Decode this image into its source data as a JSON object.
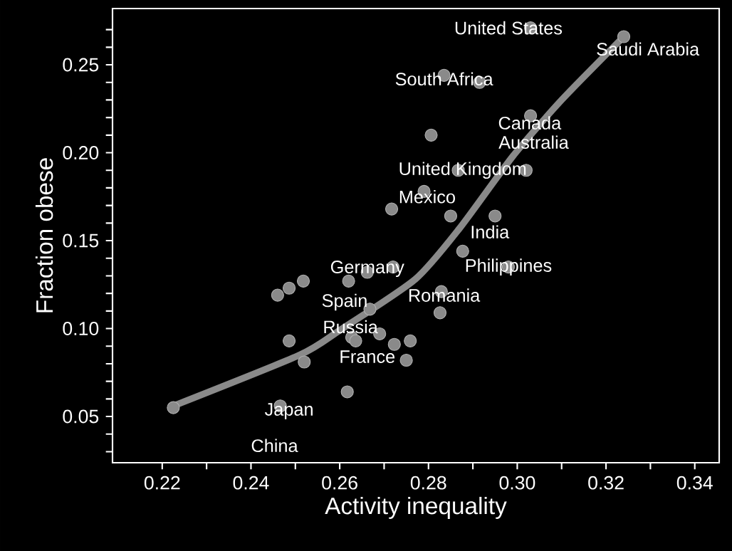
{
  "chart_data": {
    "type": "scatter",
    "xlabel": "Activity inequality",
    "ylabel": "Fraction obese",
    "xlim": [
      0.2088,
      0.3455
    ],
    "ylim": [
      0.0237,
      0.282
    ],
    "xticks": [
      0.22,
      {
        "value": 0.23,
        "label": null
      },
      0.24,
      {
        "value": 0.25,
        "label": null
      },
      0.26,
      {
        "value": 0.27,
        "label": null
      },
      0.28,
      {
        "value": 0.29,
        "label": null
      },
      {
        "value": 0.3,
        "label": "0.30"
      },
      {
        "value": 0.31,
        "label": null
      },
      0.32,
      {
        "value": 0.33,
        "label": null
      },
      0.34
    ],
    "yticks": [
      {
        "value": 0.03,
        "label": null
      },
      {
        "value": 0.04,
        "label": null
      },
      0.05,
      {
        "value": 0.06,
        "label": null
      },
      {
        "value": 0.07,
        "label": null
      },
      {
        "value": 0.08,
        "label": null
      },
      {
        "value": 0.09,
        "label": null
      },
      {
        "value": 0.1,
        "label": "0.10"
      },
      {
        "value": 0.11,
        "label": null
      },
      {
        "value": 0.12,
        "label": null
      },
      {
        "value": 0.13,
        "label": null
      },
      {
        "value": 0.14,
        "label": null
      },
      0.15,
      {
        "value": 0.16,
        "label": null
      },
      {
        "value": 0.17,
        "label": null
      },
      {
        "value": 0.18,
        "label": null
      },
      {
        "value": 0.19,
        "label": null
      },
      {
        "value": 0.2,
        "label": "0.20"
      },
      {
        "value": 0.21,
        "label": null
      },
      {
        "value": 0.22,
        "label": null
      },
      {
        "value": 0.23,
        "label": null
      },
      {
        "value": 0.24,
        "label": null
      },
      0.25,
      {
        "value": 0.26,
        "label": null
      },
      {
        "value": 0.27,
        "label": null
      }
    ],
    "series": [
      {
        "color": "#8a8a8a",
        "marker": "circle",
        "x": [
          0.2225,
          0.2466,
          0.2617,
          0.246,
          0.2486,
          0.2518,
          0.2486,
          0.252,
          0.262,
          0.2662,
          0.272,
          0.2668,
          0.2627,
          0.2636,
          0.269,
          0.2723,
          0.2759,
          0.275,
          0.2829,
          0.2826,
          0.2877,
          0.298,
          0.2717,
          0.279,
          0.285,
          0.295,
          0.2867,
          0.302,
          0.2806,
          0.303,
          0.2835,
          0.2915,
          0.303,
          0.324
        ],
        "values": [
          0.055,
          0.056,
          0.064,
          0.119,
          0.123,
          0.127,
          0.093,
          0.081,
          0.127,
          0.132,
          0.135,
          0.111,
          0.095,
          0.093,
          0.097,
          0.091,
          0.093,
          0.082,
          0.121,
          0.109,
          0.144,
          0.135,
          0.168,
          0.178,
          0.164,
          0.164,
          0.19,
          0.19,
          0.21,
          0.221,
          0.244,
          0.24,
          0.271,
          0.266
        ]
      },
      {
        "type": "line",
        "color": "#8a8a8a",
        "marker": "none",
        "line_style": "solid",
        "x": [
          0.2225,
          0.251,
          0.26,
          0.277,
          0.287,
          0.299,
          0.31,
          0.324
        ],
        "values": [
          0.056,
          0.085,
          0.099,
          0.128,
          0.157,
          0.198,
          0.23,
          0.266
        ]
      }
    ],
    "annotations": [
      "United States",
      "Saudi Arabia",
      "South Africa",
      "Canada",
      "Australia",
      "United Kingdom",
      "Mexico",
      "India",
      "Philippines",
      "Germany",
      "Romania",
      "Spain",
      "Russia",
      "France",
      "Japan",
      "China"
    ]
  }
}
